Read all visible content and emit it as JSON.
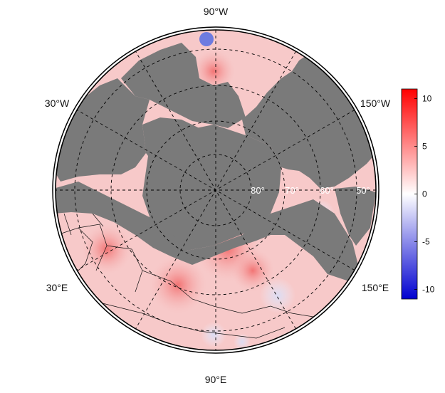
{
  "map": {
    "projection": "north-polar-stereographic",
    "meridian_labels": {
      "top": "90°W",
      "upper_left": "30°W",
      "upper_right": "150°W",
      "lower_left": "30°E",
      "lower_right": "150°E",
      "bottom": "90°E"
    },
    "latitude_labels": [
      "80°",
      "70°",
      "60°",
      "50°"
    ],
    "land_color": "#7a7a7a",
    "ocean_base_color": "#f7c9c9",
    "grid_style": "dashed"
  },
  "colorbar": {
    "min": -11,
    "max": 11,
    "ticks": [
      10,
      5,
      0,
      -5,
      -10
    ],
    "tick_labels": [
      "10",
      "5",
      "0",
      "-5",
      "-10"
    ],
    "high_color": "#ff0000",
    "mid_color": "#ffffff",
    "low_color": "#0000d0"
  }
}
